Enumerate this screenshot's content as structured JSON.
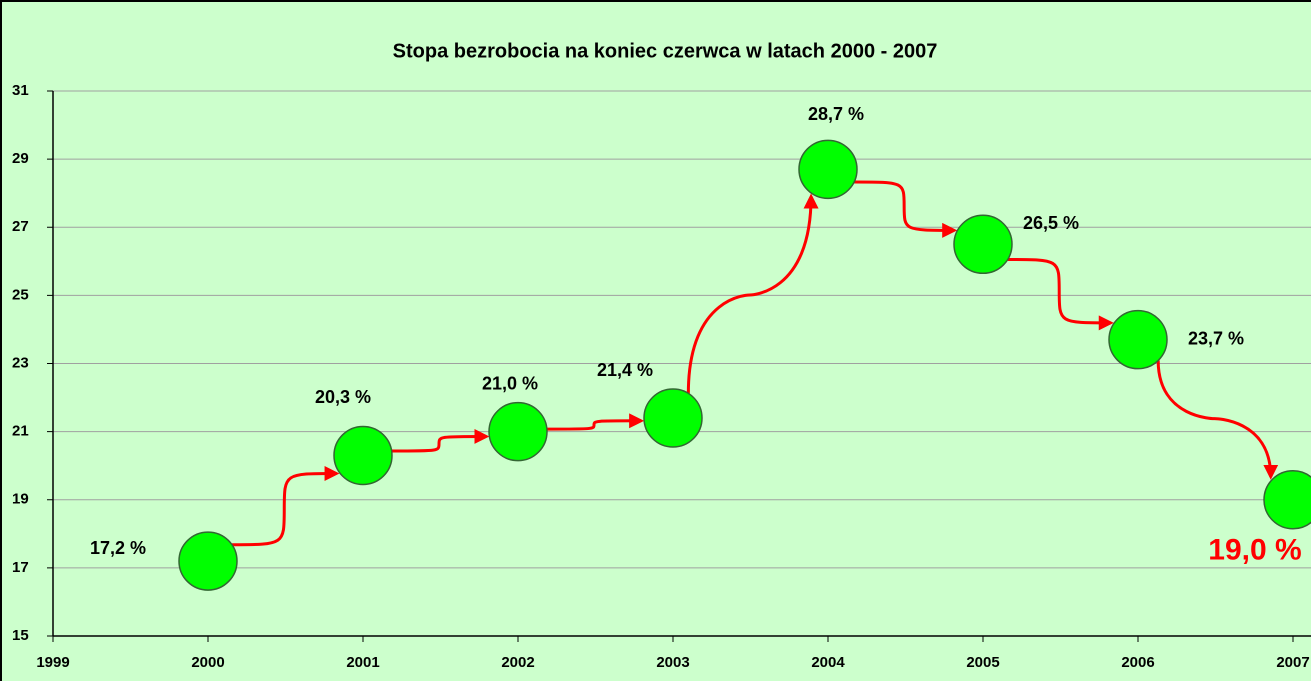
{
  "chart_data": {
    "type": "scatter",
    "title": "Stopa bezrobocia na koniec czerwca w latach 2000 - 2007",
    "x": [
      2000,
      2001,
      2002,
      2003,
      2004,
      2005,
      2006,
      2007
    ],
    "values": [
      17.2,
      20.3,
      21.0,
      21.4,
      28.7,
      26.5,
      23.7,
      19.0
    ],
    "value_labels": [
      "17,2 %",
      "20,3 %",
      "21,0 %",
      "21,4 %",
      "28,7 %",
      "26,5 %",
      "23,7 %",
      "19,0 %"
    ],
    "value_label_colors": [
      "#000000",
      "#000000",
      "#000000",
      "#000000",
      "#000000",
      "#000000",
      "#000000",
      "#ff0000"
    ],
    "color": "#00ff00",
    "arrow_color": "#ff0000",
    "xlim": [
      1999,
      2007
    ],
    "xticks": [
      1999,
      2000,
      2001,
      2002,
      2003,
      2004,
      2005,
      2006,
      2007
    ],
    "ylim": [
      15,
      31
    ],
    "yticks": [
      15,
      17,
      19,
      21,
      23,
      25,
      27,
      29,
      31
    ],
    "grid": true
  }
}
